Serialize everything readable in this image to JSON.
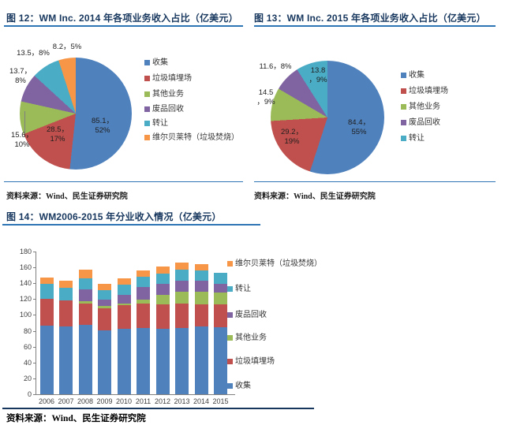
{
  "page": {
    "bottom_source": "资料来源：Wind、民生证券研究院"
  },
  "colors": {
    "collection_blue": "#4F81BD",
    "landfill_red": "#C0504D",
    "other_green": "#9BBB59",
    "recycling_purple": "#8064A2",
    "transfer_teal": "#4BACC6",
    "wheelabrator_orange": "#F79646",
    "title_navy": "#17375E",
    "rule_blue": "#2E75B6",
    "bottom_rule_navy": "#17365D"
  },
  "chart_data": [
    {
      "id": "fig12",
      "type": "pie",
      "title": "图 12：WM Inc. 2014 年各项业务收入占比（亿美元）",
      "source": "资料来源：Wind、民生证券研究院",
      "start_angle_deg": 0,
      "direction": "clockwise",
      "labels": [
        "收集",
        "垃圾填埋场",
        "其他业务",
        "废品回收",
        "转让",
        "维尔贝莱特（垃圾焚烧）"
      ],
      "values": [
        85.1,
        28.5,
        15.6,
        13.7,
        13.5,
        8.2
      ],
      "percents": [
        "52%",
        "17%",
        "10%",
        "8%",
        "8%",
        "5%"
      ],
      "slice_label_lines": [
        [
          "85.1，",
          "52%"
        ],
        [
          "28.5，",
          "17%"
        ],
        [
          "15.6，",
          "10%"
        ],
        [
          "13.7，",
          "8%"
        ],
        [
          "13.5，8%"
        ],
        [
          "8.2，5%"
        ]
      ],
      "slice_colors": [
        "#4F81BD",
        "#C0504D",
        "#9BBB59",
        "#8064A2",
        "#4BACC6",
        "#F79646"
      ],
      "legend_position": "right"
    },
    {
      "id": "fig13",
      "type": "pie",
      "title": "图 13：WM Inc. 2015 年各项业务收入占比（亿美元）",
      "source": "资料来源：Wind、民生证券研究院",
      "start_angle_deg": 0,
      "direction": "clockwise",
      "labels": [
        "收集",
        "垃圾填埋场",
        "其他业务",
        "废品回收",
        "转让"
      ],
      "values": [
        84.4,
        29.2,
        14.5,
        11.6,
        13.8
      ],
      "percents": [
        "55%",
        "19%",
        "9%",
        "8%",
        "9%"
      ],
      "slice_label_lines": [
        [
          "84.4，",
          "55%"
        ],
        [
          "29.2，",
          "19%"
        ],
        [
          "14.5",
          "，9%"
        ],
        [
          "11.6，8%"
        ],
        [
          "13.8",
          "，9%"
        ]
      ],
      "slice_colors": [
        "#4F81BD",
        "#C0504D",
        "#9BBB59",
        "#8064A2",
        "#4BACC6"
      ],
      "legend_position": "right"
    },
    {
      "id": "fig14",
      "type": "bar",
      "stacked": true,
      "title": "图 14：WM2006-2015 年分业收入情况（亿美元）",
      "source": "资料来源：Wind、民生证券研究院",
      "categories": [
        "2006",
        "2007",
        "2008",
        "2009",
        "2010",
        "2011",
        "2012",
        "2013",
        "2014",
        "2015"
      ],
      "series": [
        {
          "name": "收集",
          "color": "#4F81BD",
          "values": [
            87,
            86,
            88,
            81,
            83,
            84,
            83,
            84,
            85.1,
            84.4
          ]
        },
        {
          "name": "垃圾填埋场",
          "color": "#C0504D",
          "values": [
            33,
            32,
            26,
            27,
            29,
            30,
            30,
            30,
            28.5,
            29.2
          ]
        },
        {
          "name": "其他业务",
          "color": "#9BBB59",
          "values": [
            0,
            0,
            3,
            3,
            2,
            5,
            12,
            15,
            15.6,
            14.5
          ]
        },
        {
          "name": "废品回收",
          "color": "#8064A2",
          "values": [
            0,
            0,
            15,
            8,
            11,
            16,
            14,
            14,
            13.7,
            11.6
          ]
        },
        {
          "name": "转让",
          "color": "#4BACC6",
          "values": [
            19,
            16,
            14,
            12,
            13,
            13,
            13,
            14,
            13.5,
            13.8
          ]
        },
        {
          "name": "维尔贝莱特（垃圾焚烧）",
          "color": "#F79646",
          "values": [
            8,
            9,
            11,
            8,
            8,
            8,
            9,
            9,
            8.2,
            0
          ]
        }
      ],
      "legend_top_to_bottom": [
        "维尔贝莱特（垃圾焚烧）",
        "转让",
        "废品回收",
        "其他业务",
        "垃圾填埋场",
        "收集"
      ],
      "ylabel": "",
      "xlabel": "",
      "ylim": [
        0,
        180
      ],
      "yticks": [
        0,
        20,
        40,
        60,
        80,
        100,
        120,
        140,
        160,
        180
      ],
      "grid": false,
      "legend_position": "right"
    }
  ]
}
